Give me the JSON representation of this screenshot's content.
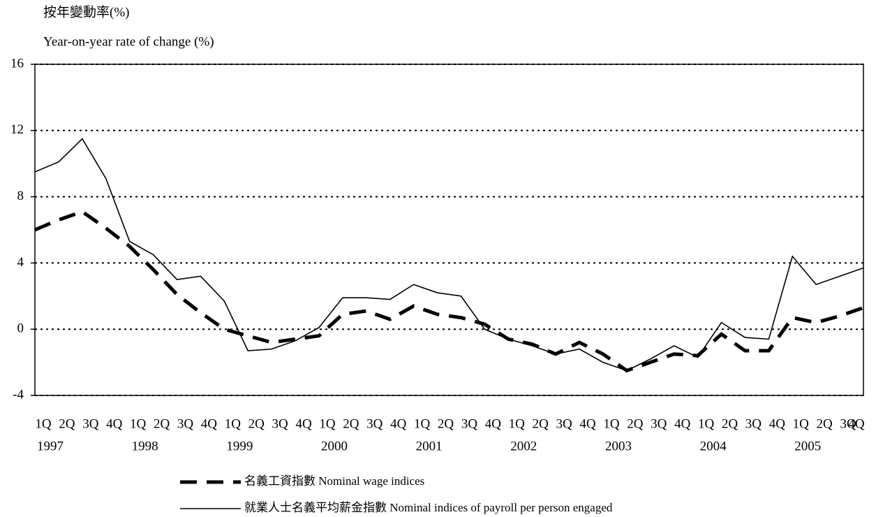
{
  "chart_data": {
    "type": "line",
    "y_label_zh": "按年變動率(%)",
    "y_label": "Year-on-year rate of change (%)",
    "categories": [
      "1Q",
      "2Q",
      "3Q",
      "4Q",
      "1Q",
      "2Q",
      "3Q",
      "4Q",
      "1Q",
      "2Q",
      "3Q",
      "4Q",
      "1Q",
      "2Q",
      "3Q",
      "4Q",
      "1Q",
      "2Q",
      "3Q",
      "4Q",
      "1Q",
      "2Q",
      "3Q",
      "4Q",
      "1Q",
      "2Q",
      "3Q",
      "4Q",
      "1Q",
      "2Q",
      "3Q",
      "4Q",
      "1Q",
      "2Q",
      "3Q",
      "4Q"
    ],
    "years": [
      "1997",
      "1998",
      "1999",
      "2000",
      "2001",
      "2002",
      "2003",
      "2004",
      "2005"
    ],
    "series": [
      {
        "name": "名義工資指數 Nominal wage indices",
        "color": "#000000",
        "dashed": true,
        "values": [
          6.0,
          6.6,
          7.1,
          6.1,
          5.0,
          3.6,
          2.1,
          1.0,
          0.0,
          -0.4,
          -0.8,
          -0.6,
          -0.4,
          0.9,
          1.1,
          0.6,
          1.4,
          0.9,
          0.7,
          0.3,
          -0.6,
          -0.9,
          -1.5,
          -0.8,
          -1.5,
          -2.5,
          -2.0,
          -1.5,
          -1.6,
          -0.3,
          -1.3,
          -1.3,
          0.7,
          0.4,
          0.8,
          1.3
        ]
      },
      {
        "name": "就業人士名義平均薪金指數 Nominal indices of payroll per person engaged",
        "color": "#000000",
        "dashed": false,
        "values": [
          9.5,
          10.1,
          11.5,
          9.1,
          5.3,
          4.5,
          3.0,
          3.2,
          1.7,
          -1.3,
          -1.2,
          -0.7,
          0.1,
          1.9,
          1.9,
          1.8,
          2.7,
          2.2,
          2.0,
          0.0,
          -0.6,
          -1.0,
          -1.5,
          -1.2,
          -2.0,
          -2.5,
          -1.8,
          -1.0,
          -1.7,
          0.4,
          -0.5,
          -0.6,
          4.4,
          2.7,
          3.2,
          3.7
        ]
      }
    ],
    "ylim": [
      -4,
      16
    ],
    "yticks": [
      -4,
      0,
      4,
      8,
      12,
      16
    ],
    "grid": true
  }
}
